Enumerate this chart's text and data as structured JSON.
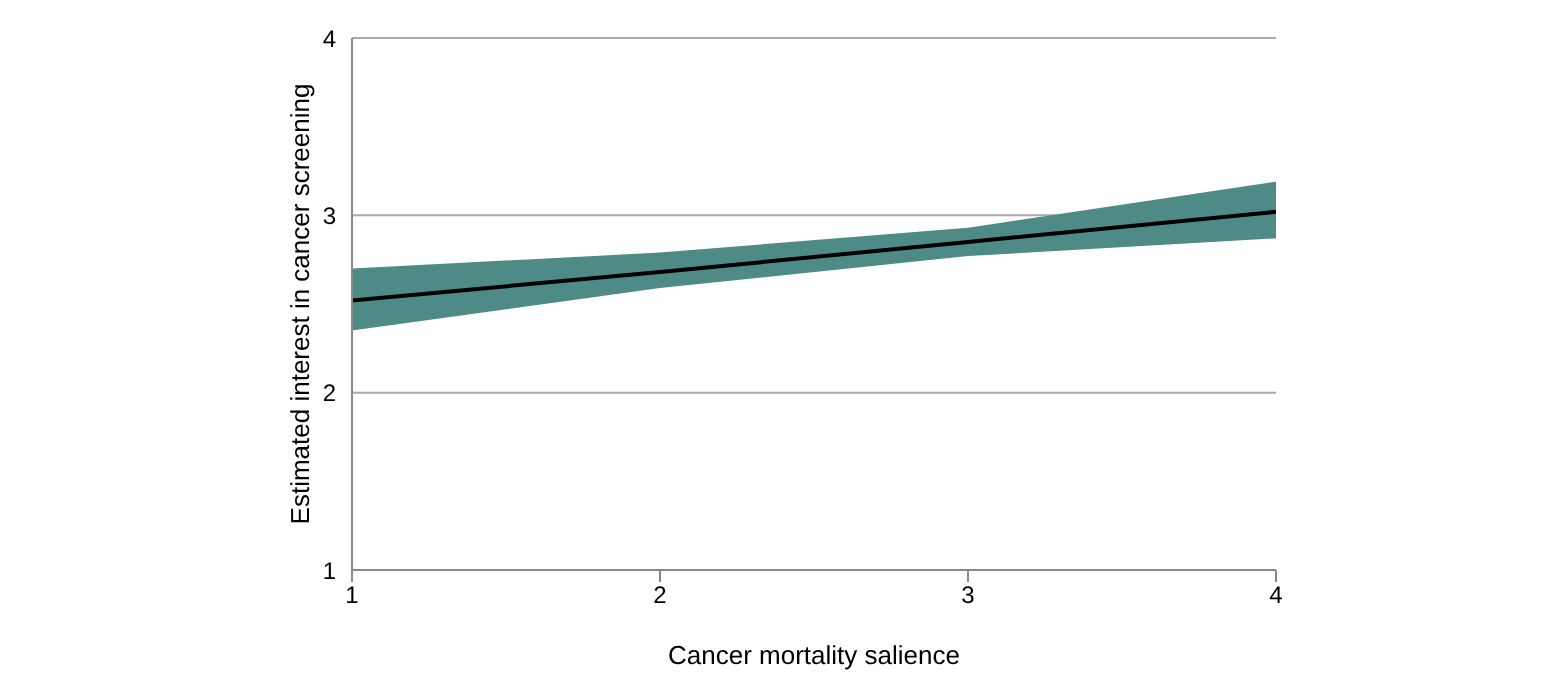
{
  "chart_data": {
    "type": "line",
    "xlabel": "Cancer mortality salience",
    "ylabel": "Estimated interest in cancer screening",
    "x": [
      1,
      2,
      3,
      4
    ],
    "series": [
      {
        "color": "#000000",
        "values": [
          2.52,
          2.68,
          2.85,
          3.02
        ],
        "lower": [
          2.35,
          2.59,
          2.77,
          2.87
        ],
        "upper": [
          2.7,
          2.79,
          2.93,
          3.19
        ]
      }
    ],
    "xlim": [
      1,
      4
    ],
    "xticks": [
      1,
      2,
      3,
      4
    ],
    "ylim": [
      1,
      4
    ],
    "yticks": [
      1,
      2,
      3,
      4
    ],
    "grid": "y",
    "marker": "none",
    "line_style": "solid"
  }
}
